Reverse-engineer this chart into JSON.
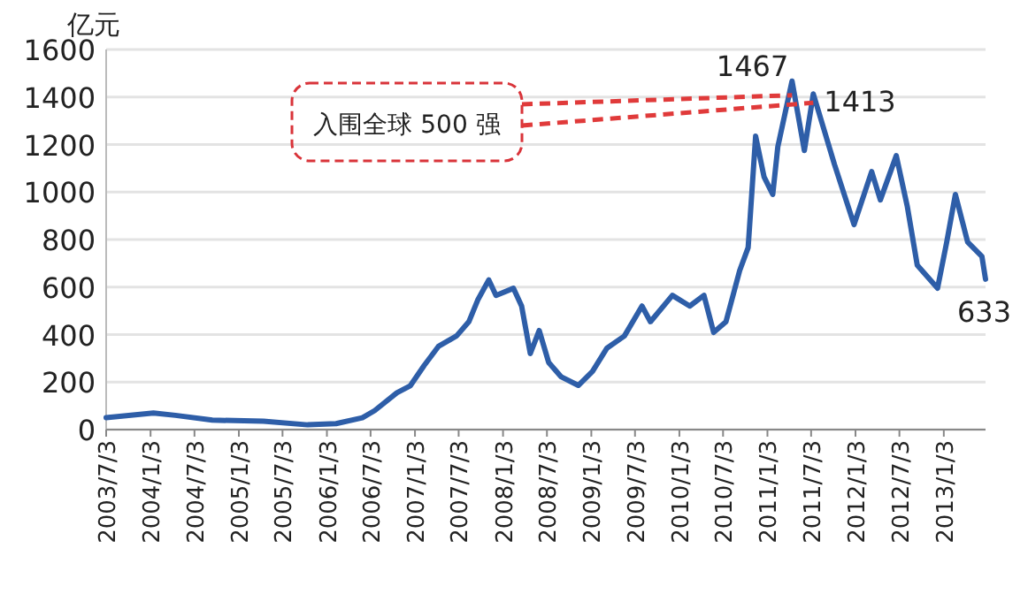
{
  "chart_data": {
    "type": "line",
    "ylabel": "亿元",
    "x": [
      "2003-07-03",
      "2004-01-15",
      "2004-04-15",
      "2004-09-15",
      "2005-04-15",
      "2005-10-15",
      "2006-02-10",
      "2006-05-30",
      "2006-07-20",
      "2006-10-20",
      "2006-12-15",
      "2007-02-10",
      "2007-04-10",
      "2007-06-25",
      "2007-08-15",
      "2007-09-20",
      "2007-11-05",
      "2007-12-05",
      "2008-02-15",
      "2008-03-20",
      "2008-04-25",
      "2008-06-01",
      "2008-07-10",
      "2008-08-30",
      "2008-11-10",
      "2009-01-08",
      "2009-03-08",
      "2009-05-20",
      "2009-08-01",
      "2009-09-05",
      "2009-12-05",
      "2010-02-15",
      "2010-04-15",
      "2010-05-25",
      "2010-07-15",
      "2010-09-10",
      "2010-10-15",
      "2010-11-15",
      "2010-12-20",
      "2011-01-25",
      "2011-02-15",
      "2011-04-15",
      "2011-06-05",
      "2011-07-12",
      "2011-10-08",
      "2011-12-28",
      "2012-03-10",
      "2012-04-15",
      "2012-06-20",
      "2012-08-05",
      "2012-09-15",
      "2012-12-08",
      "2013-01-15",
      "2013-02-20",
      "2013-04-12",
      "2013-06-10",
      "2013-06-25"
    ],
    "series": [
      {
        "color": "#2e5ea8",
        "values": [
          50,
          70,
          60,
          40,
          35,
          20,
          25,
          50,
          80,
          155,
          185,
          270,
          350,
          395,
          455,
          545,
          630,
          565,
          595,
          520,
          320,
          417,
          283,
          223,
          186,
          245,
          342,
          394,
          520,
          454,
          565,
          520,
          565,
          409,
          454,
          670,
          766,
          1235,
          1064,
          990,
          1190,
          1467,
          1175,
          1413,
          1116,
          863,
          1086,
          967,
          1153,
          938,
          692,
          595,
          789,
          990,
          789,
          729,
          633
        ]
      }
    ],
    "ylim": [
      0,
      1600
    ],
    "yticks": [
      0,
      200,
      400,
      600,
      800,
      1000,
      1200,
      1400,
      1600
    ],
    "xlim": [
      "2003-07-03",
      "2013-06-25"
    ],
    "xticks": [
      {
        "value": "2003-07-03",
        "label": "2003/7/3"
      },
      {
        "value": "2004-01-03",
        "label": "2004/1/3"
      },
      {
        "value": "2004-07-03",
        "label": "2004/7/3"
      },
      {
        "value": "2005-01-03",
        "label": "2005/1/3"
      },
      {
        "value": "2005-07-03",
        "label": "2005/7/3"
      },
      {
        "value": "2006-01-03",
        "label": "2006/1/3"
      },
      {
        "value": "2006-07-03",
        "label": "2006/7/3"
      },
      {
        "value": "2007-01-03",
        "label": "2007/1/3"
      },
      {
        "value": "2007-07-03",
        "label": "2007/7/3"
      },
      {
        "value": "2008-01-03",
        "label": "2008/1/3"
      },
      {
        "value": "2008-07-03",
        "label": "2008/7/3"
      },
      {
        "value": "2009-01-03",
        "label": "2009/1/3"
      },
      {
        "value": "2009-07-03",
        "label": "2009/7/3"
      },
      {
        "value": "2010-01-03",
        "label": "2010/1/3"
      },
      {
        "value": "2010-07-03",
        "label": "2010/7/3"
      },
      {
        "value": "2011-01-03",
        "label": "2011/1/3"
      },
      {
        "value": "2011-07-03",
        "label": "2011/7/3"
      },
      {
        "value": "2012-01-03",
        "label": "2012/1/3"
      },
      {
        "value": "2012-07-03",
        "label": "2012/7/3"
      },
      {
        "value": "2013-01-03",
        "label": "2013/1/3"
      }
    ],
    "grid": "y",
    "annotations": [
      {
        "text": "入围全球 500 强",
        "x": "2011-04-15",
        "y": 1467
      },
      {
        "text": "1467",
        "x": "2011-04-15",
        "y": 1467
      },
      {
        "text": "1413",
        "x": "2011-07-12",
        "y": 1413
      },
      {
        "text": "633",
        "x": "2013-06-25",
        "y": 633
      }
    ]
  }
}
